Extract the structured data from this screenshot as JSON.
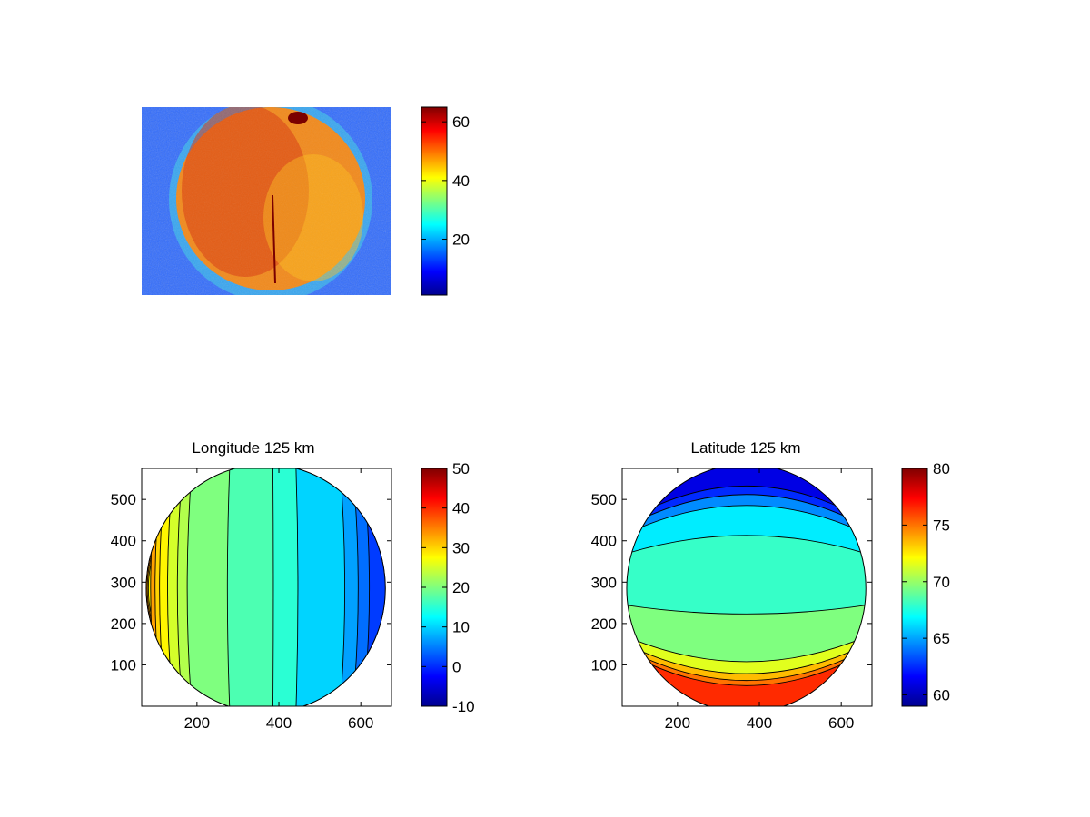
{
  "figure": {
    "background": "#ffffff"
  },
  "colormap": [
    "#00008f",
    "#0000ff",
    "#007fff",
    "#00ffff",
    "#7fff7f",
    "#ffff00",
    "#ff7f00",
    "#ff0000",
    "#800000"
  ],
  "chart_data": [
    {
      "type": "heatmap",
      "title": "",
      "xlabel": "",
      "ylabel": "",
      "axes_visible": false,
      "description_values": {
        "disk_mean": 50,
        "background_mean": 15
      },
      "colorbar": {
        "range": [
          1,
          65
        ],
        "ticks": [
          20,
          40,
          60
        ],
        "tick_labels": [
          "20",
          "40",
          "60"
        ]
      }
    },
    {
      "type": "contour",
      "title": "Longitude 125 km",
      "xlabel": "",
      "ylabel": "",
      "xlim": [
        65,
        675
      ],
      "ylim": [
        0,
        575
      ],
      "xticks": [
        200,
        400,
        600
      ],
      "xtick_labels": [
        "200",
        "400",
        "600"
      ],
      "yticks": [
        100,
        200,
        300,
        400,
        500
      ],
      "ytick_labels": [
        "100",
        "200",
        "300",
        "400",
        "500"
      ],
      "disk": {
        "cx": 368,
        "cy": 285,
        "rx": 292,
        "ry": 300
      },
      "levels": [
        -10,
        0,
        10,
        15,
        20,
        25,
        30,
        40,
        50
      ],
      "band_edges_x": [
        110,
        120,
        130,
        148,
        170,
        192,
        282,
        385,
        440,
        545,
        575,
        600,
        615
      ],
      "band_values": [
        33,
        30,
        28,
        25,
        23,
        20,
        17,
        15,
        10,
        7,
        4,
        1
      ],
      "colorbar": {
        "range": [
          -10,
          50
        ],
        "ticks": [
          -10,
          0,
          10,
          20,
          30,
          40,
          50
        ],
        "tick_labels": [
          "-10",
          "0",
          "10",
          "20",
          "30",
          "40",
          "50"
        ]
      }
    },
    {
      "type": "contour",
      "title": "Latitude 125 km",
      "xlabel": "",
      "ylabel": "",
      "xlim": [
        65,
        675
      ],
      "ylim": [
        0,
        575
      ],
      "xticks": [
        200,
        400,
        600
      ],
      "xtick_labels": [
        "200",
        "400",
        "600"
      ],
      "yticks": [
        100,
        200,
        300,
        400,
        500
      ],
      "ytick_labels": [
        "100",
        "200",
        "300",
        "400",
        "500"
      ],
      "disk": {
        "cx": 368,
        "cy": 285,
        "rx": 292,
        "ry": 300
      },
      "band_edges_y": [
        585,
        560,
        528,
        440,
        210,
        70,
        35,
        15,
        0,
        -25
      ],
      "band_values": [
        62.5,
        64.5,
        66.5,
        68,
        69.5,
        71.5,
        73.5,
        75,
        76.5
      ],
      "colorbar": {
        "range": [
          59,
          80
        ],
        "ticks": [
          60,
          65,
          70,
          75,
          80
        ],
        "tick_labels": [
          "60",
          "65",
          "70",
          "75",
          "80"
        ]
      }
    }
  ]
}
